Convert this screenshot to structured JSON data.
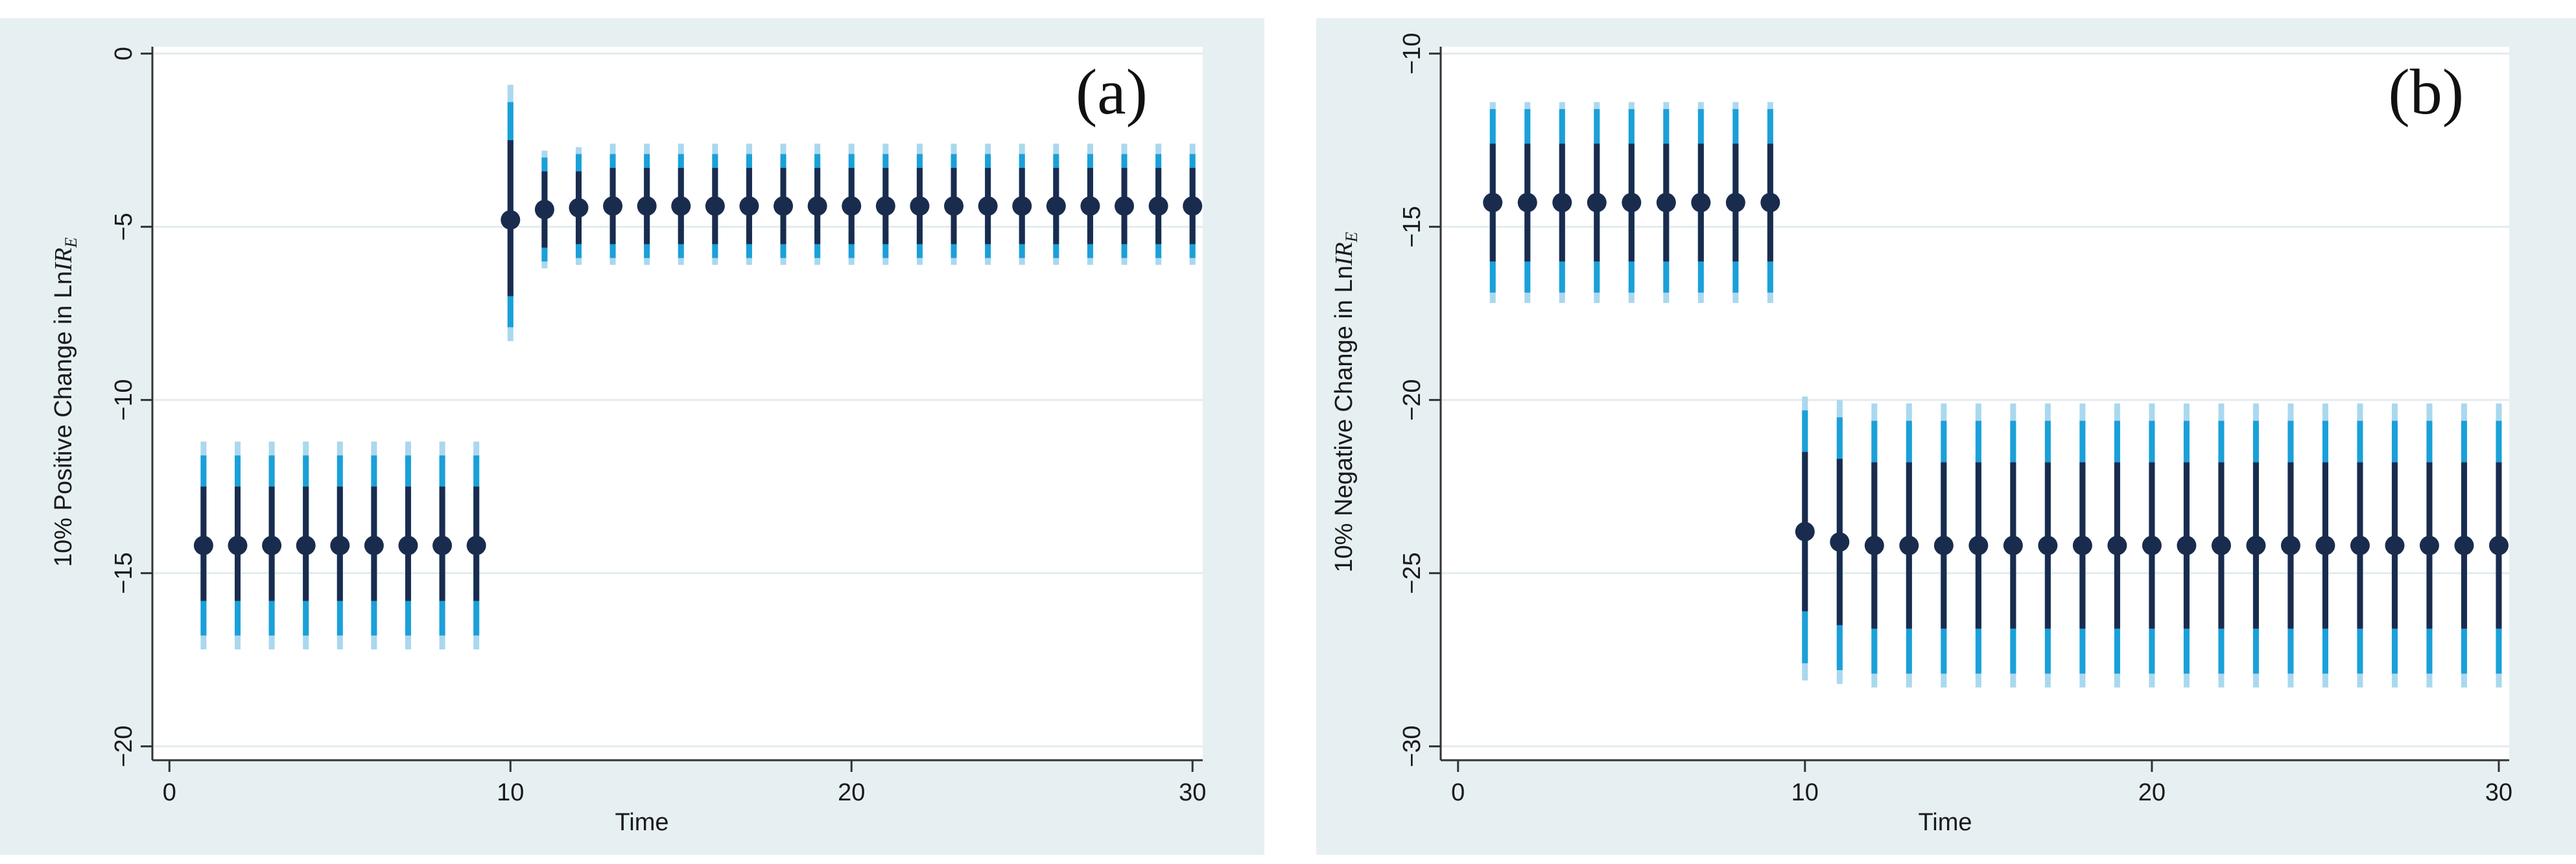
{
  "colors": {
    "panel_bg": "#e6f0f3",
    "plot_bg": "#ffffff",
    "grid": "#e3ecef",
    "point": "#1a2c4e",
    "ci_inner": "#1a2c4e",
    "ci_mid": "#1aa0d8",
    "ci_outer": "#aad8ee"
  },
  "chart_data": [
    {
      "type": "scatter",
      "panel_label": "(a)",
      "title": "",
      "xlabel": "Time",
      "ylabel_prefix": "10% Positive Change in Ln",
      "ylabel_var": "IR",
      "ylabel_sub": "E",
      "xlim": [
        -0.5,
        30.3
      ],
      "ylim": [
        -20.4,
        0.2
      ],
      "xticks": [
        0,
        10,
        20,
        30
      ],
      "xtick_labels": [
        "0",
        "10",
        "20",
        "30"
      ],
      "yticks": [
        0,
        -5,
        -10,
        -15,
        -20
      ],
      "ytick_labels": [
        "0",
        "−5",
        "−10",
        "−15",
        "−20"
      ],
      "x": [
        1,
        2,
        3,
        4,
        5,
        6,
        7,
        8,
        9,
        10,
        11,
        12,
        13,
        14,
        15,
        16,
        17,
        18,
        19,
        20,
        21,
        22,
        23,
        24,
        25,
        26,
        27,
        28,
        29,
        30
      ],
      "y": [
        -14.2,
        -14.2,
        -14.2,
        -14.2,
        -14.2,
        -14.2,
        -14.2,
        -14.2,
        -14.2,
        -4.8,
        -4.5,
        -4.45,
        -4.4,
        -4.4,
        -4.4,
        -4.4,
        -4.4,
        -4.4,
        -4.4,
        -4.4,
        -4.4,
        -4.4,
        -4.4,
        -4.4,
        -4.4,
        -4.4,
        -4.4,
        -4.4,
        -4.4,
        -4.4
      ],
      "ci_inner_low": [
        -15.8,
        -15.8,
        -15.8,
        -15.8,
        -15.8,
        -15.8,
        -15.8,
        -15.8,
        -15.8,
        -7.0,
        -5.6,
        -5.5,
        -5.5,
        -5.5,
        -5.5,
        -5.5,
        -5.5,
        -5.5,
        -5.5,
        -5.5,
        -5.5,
        -5.5,
        -5.5,
        -5.5,
        -5.5,
        -5.5,
        -5.5,
        -5.5,
        -5.5,
        -5.5
      ],
      "ci_inner_high": [
        -12.5,
        -12.5,
        -12.5,
        -12.5,
        -12.5,
        -12.5,
        -12.5,
        -12.5,
        -12.5,
        -2.5,
        -3.4,
        -3.4,
        -3.3,
        -3.3,
        -3.3,
        -3.3,
        -3.3,
        -3.3,
        -3.3,
        -3.3,
        -3.3,
        -3.3,
        -3.3,
        -3.3,
        -3.3,
        -3.3,
        -3.3,
        -3.3,
        -3.3,
        -3.3
      ],
      "ci_mid_low": [
        -16.8,
        -16.8,
        -16.8,
        -16.8,
        -16.8,
        -16.8,
        -16.8,
        -16.8,
        -16.8,
        -7.9,
        -6.0,
        -5.9,
        -5.9,
        -5.9,
        -5.9,
        -5.9,
        -5.9,
        -5.9,
        -5.9,
        -5.9,
        -5.9,
        -5.9,
        -5.9,
        -5.9,
        -5.9,
        -5.9,
        -5.9,
        -5.9,
        -5.9,
        -5.9
      ],
      "ci_mid_high": [
        -11.6,
        -11.6,
        -11.6,
        -11.6,
        -11.6,
        -11.6,
        -11.6,
        -11.6,
        -11.6,
        -1.4,
        -3.0,
        -2.9,
        -2.9,
        -2.9,
        -2.9,
        -2.9,
        -2.9,
        -2.9,
        -2.9,
        -2.9,
        -2.9,
        -2.9,
        -2.9,
        -2.9,
        -2.9,
        -2.9,
        -2.9,
        -2.9,
        -2.9,
        -2.9
      ],
      "ci_outer_low": [
        -17.2,
        -17.2,
        -17.2,
        -17.2,
        -17.2,
        -17.2,
        -17.2,
        -17.2,
        -17.2,
        -8.3,
        -6.2,
        -6.1,
        -6.1,
        -6.1,
        -6.1,
        -6.1,
        -6.1,
        -6.1,
        -6.1,
        -6.1,
        -6.1,
        -6.1,
        -6.1,
        -6.1,
        -6.1,
        -6.1,
        -6.1,
        -6.1,
        -6.1,
        -6.1
      ],
      "ci_outer_high": [
        -11.2,
        -11.2,
        -11.2,
        -11.2,
        -11.2,
        -11.2,
        -11.2,
        -11.2,
        -11.2,
        -0.9,
        -2.8,
        -2.7,
        -2.6,
        -2.6,
        -2.6,
        -2.6,
        -2.6,
        -2.6,
        -2.6,
        -2.6,
        -2.6,
        -2.6,
        -2.6,
        -2.6,
        -2.6,
        -2.6,
        -2.6,
        -2.6,
        -2.6,
        -2.6
      ]
    },
    {
      "type": "scatter",
      "panel_label": "(b)",
      "title": "",
      "xlabel": "Time",
      "ylabel_prefix": "10% Negative Change in Ln",
      "ylabel_var": "IR",
      "ylabel_sub": "E",
      "xlim": [
        -0.5,
        30.3
      ],
      "ylim": [
        -30.4,
        -9.8
      ],
      "xticks": [
        0,
        10,
        20,
        30
      ],
      "xtick_labels": [
        "0",
        "10",
        "20",
        "30"
      ],
      "yticks": [
        -10,
        -15,
        -20,
        -25,
        -30
      ],
      "ytick_labels": [
        "−10",
        "−15",
        "−20",
        "−25",
        "−30"
      ],
      "x": [
        1,
        2,
        3,
        4,
        5,
        6,
        7,
        8,
        9,
        10,
        11,
        12,
        13,
        14,
        15,
        16,
        17,
        18,
        19,
        20,
        21,
        22,
        23,
        24,
        25,
        26,
        27,
        28,
        29,
        30
      ],
      "y": [
        -14.3,
        -14.3,
        -14.3,
        -14.3,
        -14.3,
        -14.3,
        -14.3,
        -14.3,
        -14.3,
        -23.8,
        -24.1,
        -24.2,
        -24.2,
        -24.2,
        -24.2,
        -24.2,
        -24.2,
        -24.2,
        -24.2,
        -24.2,
        -24.2,
        -24.2,
        -24.2,
        -24.2,
        -24.2,
        -24.2,
        -24.2,
        -24.2,
        -24.2,
        -24.2
      ],
      "ci_inner_low": [
        -16.0,
        -16.0,
        -16.0,
        -16.0,
        -16.0,
        -16.0,
        -16.0,
        -16.0,
        -16.0,
        -26.1,
        -26.5,
        -26.6,
        -26.6,
        -26.6,
        -26.6,
        -26.6,
        -26.6,
        -26.6,
        -26.6,
        -26.6,
        -26.6,
        -26.6,
        -26.6,
        -26.6,
        -26.6,
        -26.6,
        -26.6,
        -26.6,
        -26.6,
        -26.6
      ],
      "ci_inner_high": [
        -12.6,
        -12.6,
        -12.6,
        -12.6,
        -12.6,
        -12.6,
        -12.6,
        -12.6,
        -12.6,
        -21.5,
        -21.7,
        -21.8,
        -21.8,
        -21.8,
        -21.8,
        -21.8,
        -21.8,
        -21.8,
        -21.8,
        -21.8,
        -21.8,
        -21.8,
        -21.8,
        -21.8,
        -21.8,
        -21.8,
        -21.8,
        -21.8,
        -21.8,
        -21.8
      ],
      "ci_mid_low": [
        -16.9,
        -16.9,
        -16.9,
        -16.9,
        -16.9,
        -16.9,
        -16.9,
        -16.9,
        -16.9,
        -27.6,
        -27.8,
        -27.9,
        -27.9,
        -27.9,
        -27.9,
        -27.9,
        -27.9,
        -27.9,
        -27.9,
        -27.9,
        -27.9,
        -27.9,
        -27.9,
        -27.9,
        -27.9,
        -27.9,
        -27.9,
        -27.9,
        -27.9,
        -27.9
      ],
      "ci_mid_high": [
        -11.6,
        -11.6,
        -11.6,
        -11.6,
        -11.6,
        -11.6,
        -11.6,
        -11.6,
        -11.6,
        -20.3,
        -20.5,
        -20.6,
        -20.6,
        -20.6,
        -20.6,
        -20.6,
        -20.6,
        -20.6,
        -20.6,
        -20.6,
        -20.6,
        -20.6,
        -20.6,
        -20.6,
        -20.6,
        -20.6,
        -20.6,
        -20.6,
        -20.6,
        -20.6
      ],
      "ci_outer_low": [
        -17.2,
        -17.2,
        -17.2,
        -17.2,
        -17.2,
        -17.2,
        -17.2,
        -17.2,
        -17.2,
        -28.1,
        -28.2,
        -28.3,
        -28.3,
        -28.3,
        -28.3,
        -28.3,
        -28.3,
        -28.3,
        -28.3,
        -28.3,
        -28.3,
        -28.3,
        -28.3,
        -28.3,
        -28.3,
        -28.3,
        -28.3,
        -28.3,
        -28.3,
        -28.3
      ],
      "ci_outer_high": [
        -11.4,
        -11.4,
        -11.4,
        -11.4,
        -11.4,
        -11.4,
        -11.4,
        -11.4,
        -11.4,
        -19.9,
        -20.0,
        -20.1,
        -20.1,
        -20.1,
        -20.1,
        -20.1,
        -20.1,
        -20.1,
        -20.1,
        -20.1,
        -20.1,
        -20.1,
        -20.1,
        -20.1,
        -20.1,
        -20.1,
        -20.1,
        -20.1,
        -20.1,
        -20.1
      ]
    }
  ]
}
